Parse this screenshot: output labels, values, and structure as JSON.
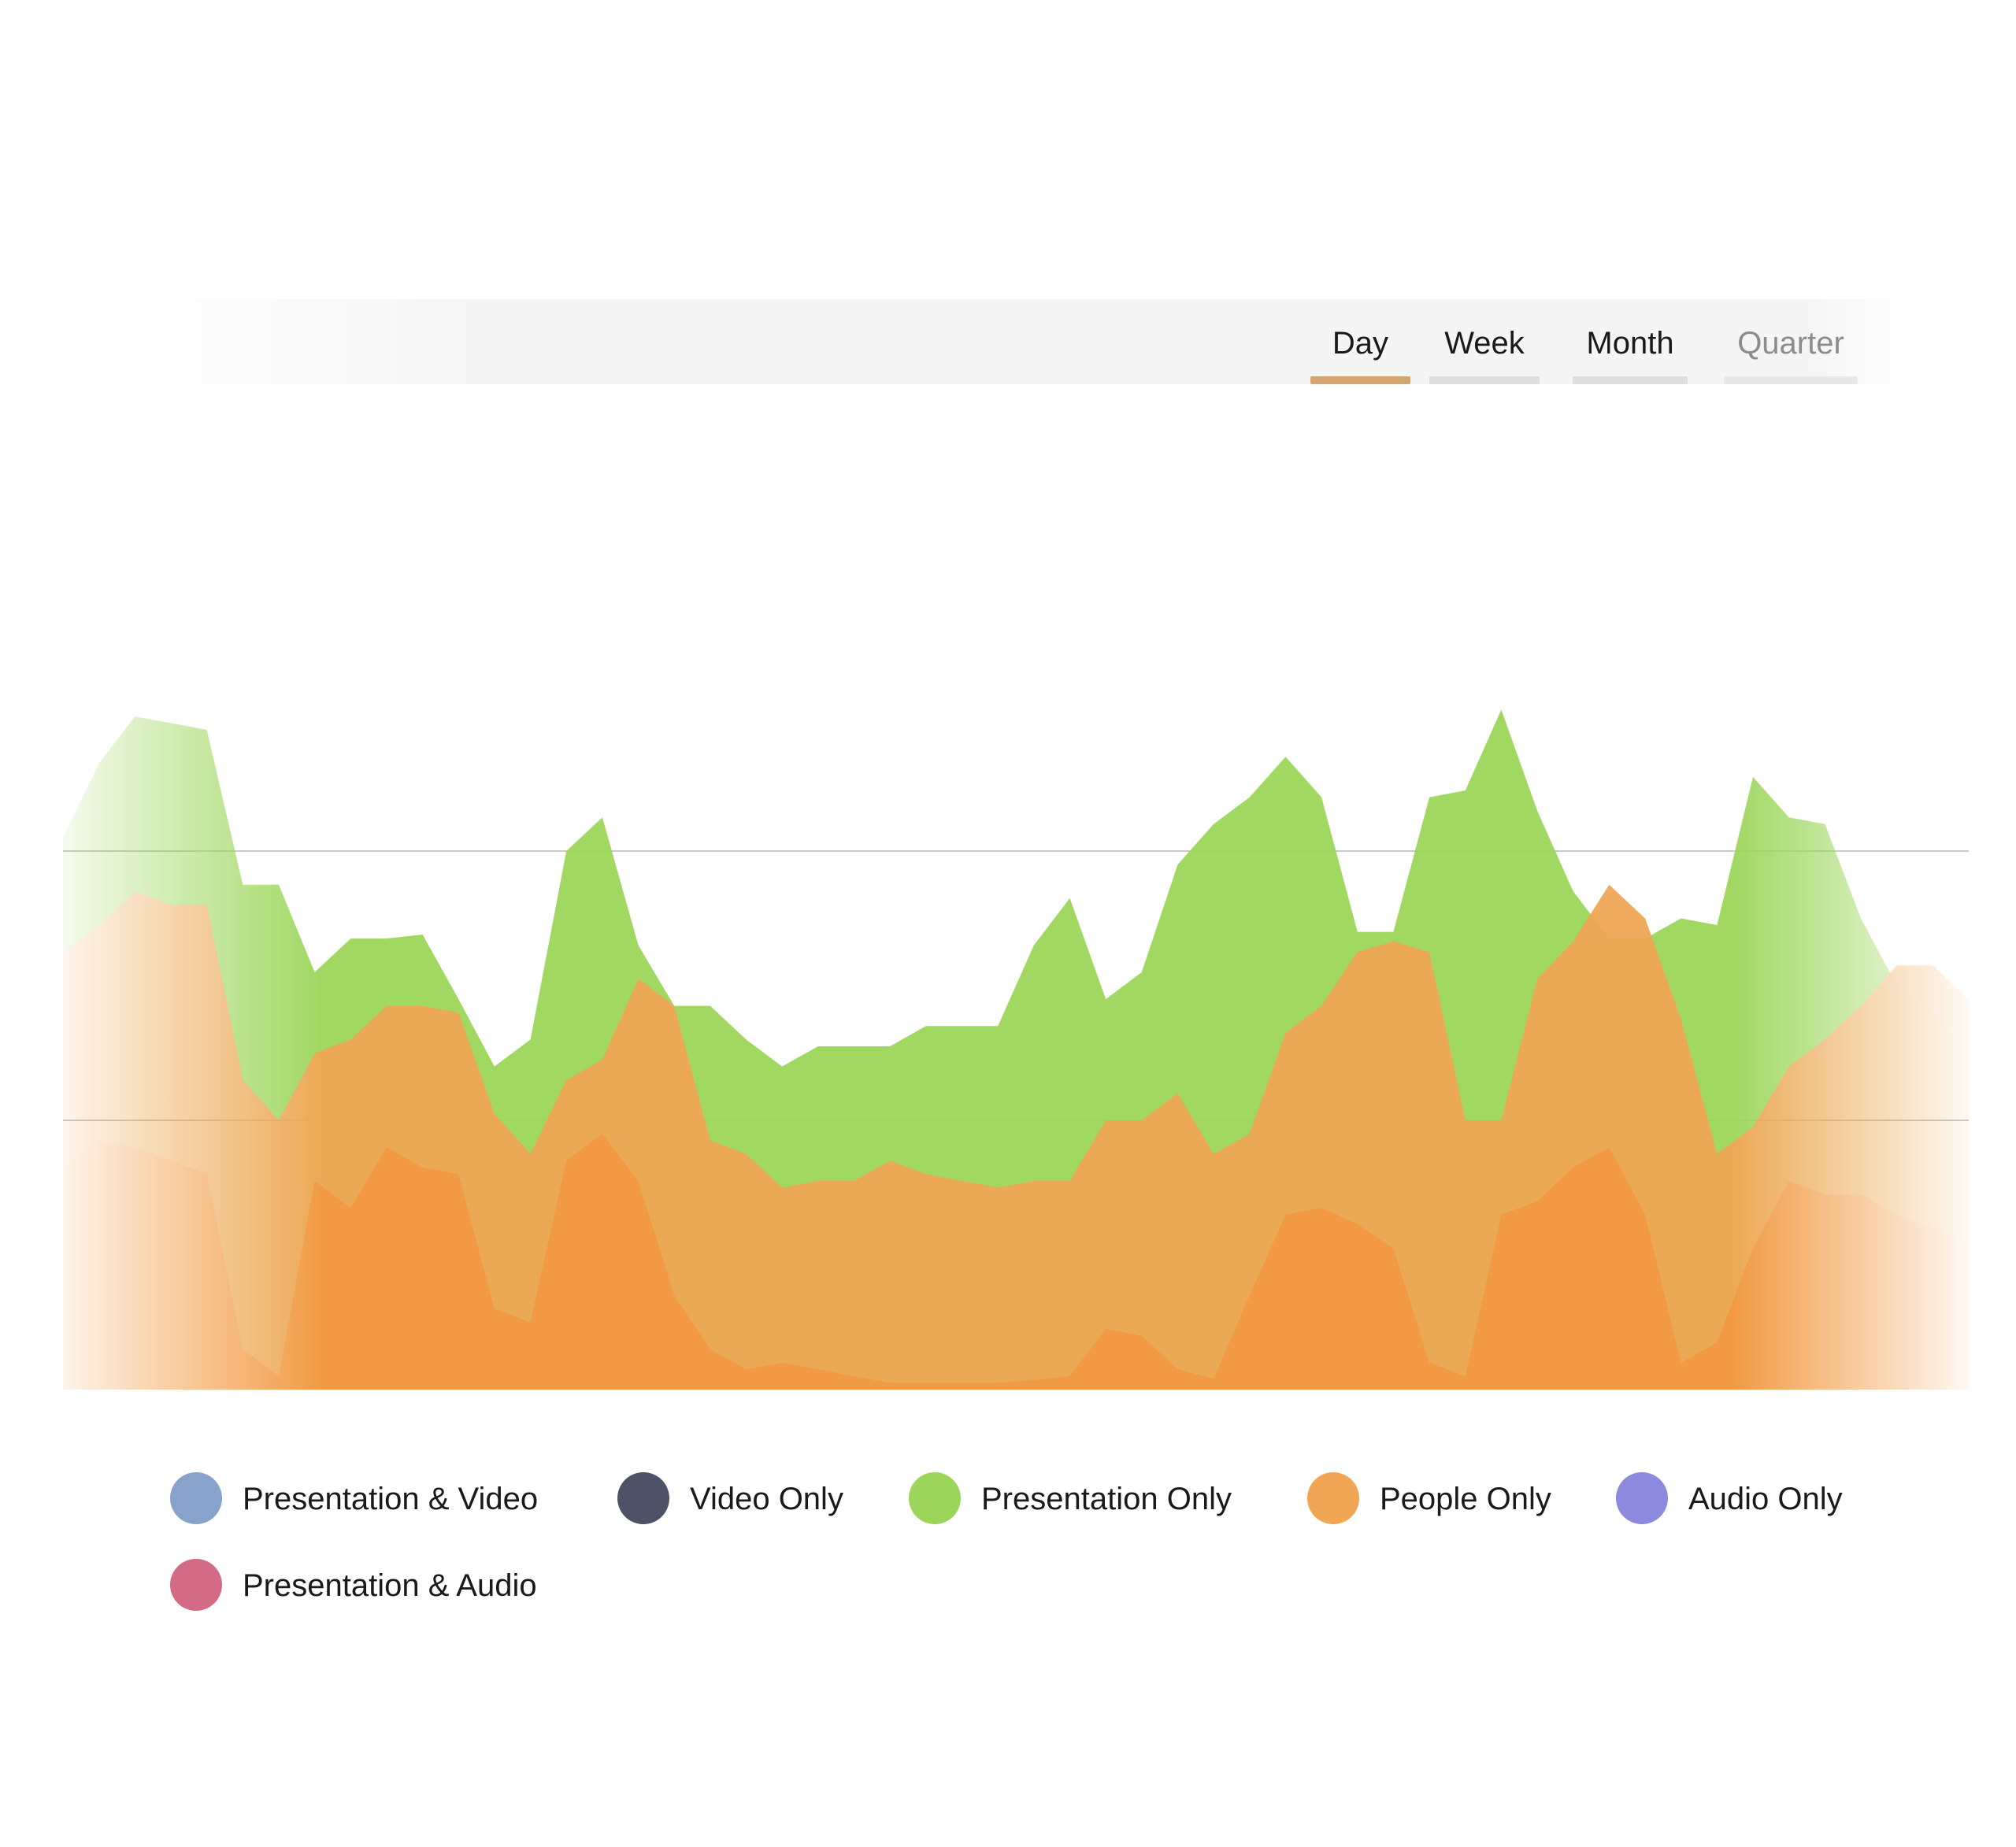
{
  "tabs": [
    {
      "label": "Day",
      "active": true
    },
    {
      "label": "Week",
      "active": false
    },
    {
      "label": "Month",
      "active": false
    },
    {
      "label": "Quarter",
      "active": false
    }
  ],
  "colors": {
    "active_tab_indicator": "#d2a66e",
    "presentation_only": "#9bd65a",
    "people_only": "#f0a655",
    "people_only_inner": "#f2963f"
  },
  "legend": [
    {
      "label": "Presentation & Video",
      "color": "#87a2cb",
      "icon": "legend-dot-icon"
    },
    {
      "label": "Video Only",
      "color": "#4e5266",
      "icon": "legend-dot-icon"
    },
    {
      "label": "Presentation Only",
      "color": "#9bd65a",
      "icon": "legend-dot-icon"
    },
    {
      "label": "People Only",
      "color": "#f0a655",
      "icon": "legend-dot-icon"
    },
    {
      "label": "Audio Only",
      "color": "#8b8ade",
      "icon": "legend-dot-icon"
    },
    {
      "label": "Presentation & Audio",
      "color": "#d36b85",
      "icon": "legend-dot-icon"
    }
  ],
  "chart_data": {
    "type": "area",
    "stacked": false,
    "grid": true,
    "gridlines": [
      20,
      40,
      60
    ],
    "ylim": [
      0,
      60
    ],
    "x": [
      0,
      1,
      2,
      3,
      4,
      5,
      6,
      7,
      8,
      9,
      10,
      11,
      12,
      13,
      14,
      15,
      16,
      17,
      18,
      19,
      20,
      21,
      22,
      23,
      24,
      25,
      26,
      27,
      28,
      29,
      30,
      31,
      32,
      33,
      34,
      35,
      36,
      37,
      38,
      39,
      40,
      41,
      42,
      43,
      44,
      45,
      46,
      47,
      48,
      49,
      50,
      51,
      52,
      53
    ],
    "legend_position": "bottom",
    "series": [
      {
        "name": "Presentation Only",
        "color": "#9bd65a",
        "values": [
          41,
          46.5,
          50,
          49.5,
          49,
          37.5,
          37.5,
          31,
          33.5,
          33.5,
          33.8,
          29,
          24,
          26,
          40,
          42.5,
          33,
          28.5,
          28.5,
          26,
          24,
          25.5,
          25.5,
          25.5,
          27,
          27,
          27,
          33,
          36.5,
          29,
          31,
          39,
          42,
          44,
          47,
          44,
          34,
          34,
          44,
          44.5,
          50.5,
          43,
          37,
          33.5,
          33.5,
          35,
          34.5,
          45.5,
          42.5,
          42,
          35,
          30,
          28,
          25
        ]
      },
      {
        "name": "People Only",
        "color": "#f0a655",
        "values": [
          32.5,
          34.5,
          37,
          36,
          36,
          23,
          20,
          25,
          26,
          28.5,
          28.5,
          28,
          20.5,
          17.5,
          23,
          24.5,
          30.5,
          28.5,
          18.5,
          17.5,
          15,
          15.5,
          15.5,
          17,
          16,
          15.5,
          15,
          15.5,
          15.5,
          20,
          20,
          22,
          17.5,
          19,
          26.5,
          28.5,
          32.5,
          33.3,
          32.5,
          20,
          20,
          30.5,
          33.3,
          37.5,
          35,
          27.5,
          17.5,
          19.5,
          24,
          26,
          28.5,
          31.5,
          31.5,
          29
        ]
      },
      {
        "name": "People Only",
        "color": "#f2963f",
        "values": [
          16.5,
          18.5,
          18,
          17,
          16,
          3,
          1,
          15.5,
          13.5,
          18,
          16.5,
          16,
          6,
          5,
          17,
          19,
          15.5,
          7,
          3,
          1.5,
          2,
          1.5,
          1,
          0.5,
          0.5,
          0.5,
          0.5,
          0.7,
          1,
          4.5,
          4,
          1.5,
          0.8,
          7,
          13,
          13.5,
          12.3,
          10.5,
          2,
          1,
          13,
          14,
          16.5,
          18,
          13,
          2,
          3.5,
          10.5,
          15.5,
          14.5,
          14.5,
          13,
          12,
          11
        ]
      }
    ]
  }
}
